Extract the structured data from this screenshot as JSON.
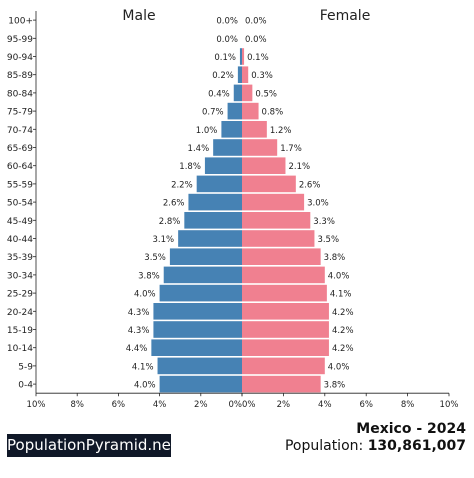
{
  "header": {
    "male_label": "Male",
    "female_label": "Female"
  },
  "footer": {
    "brand": "PopulationPyramid.net",
    "title": "Mexico - 2024",
    "population_label": "Population:",
    "population_value": "130,861,007"
  },
  "colors": {
    "male": "#4682b4",
    "female": "#f08090",
    "brand_bg": "#101828"
  },
  "chart_data": {
    "type": "bar",
    "orientation": "horizontal-pyramid",
    "categories": [
      "100+",
      "95-99",
      "90-94",
      "85-89",
      "80-84",
      "75-79",
      "70-74",
      "65-69",
      "60-64",
      "55-59",
      "50-54",
      "45-49",
      "40-44",
      "35-39",
      "30-34",
      "25-29",
      "20-24",
      "15-19",
      "10-14",
      "5-9",
      "0-4"
    ],
    "series": [
      {
        "name": "Male",
        "values": [
          0.0,
          0.0,
          0.1,
          0.2,
          0.4,
          0.7,
          1.0,
          1.4,
          1.8,
          2.2,
          2.6,
          2.8,
          3.1,
          3.5,
          3.8,
          4.0,
          4.3,
          4.3,
          4.4,
          4.1,
          4.0
        ],
        "labels": [
          "0.0%",
          "0.0%",
          "0.1%",
          "0.2%",
          "0.4%",
          "0.7%",
          "1.0%",
          "1.4%",
          "1.8%",
          "2.2%",
          "2.6%",
          "2.8%",
          "3.1%",
          "3.5%",
          "3.8%",
          "4.0%",
          "4.3%",
          "4.3%",
          "4.4%",
          "4.1%",
          "4.0%"
        ]
      },
      {
        "name": "Female",
        "values": [
          0.0,
          0.0,
          0.1,
          0.3,
          0.5,
          0.8,
          1.2,
          1.7,
          2.1,
          2.6,
          3.0,
          3.3,
          3.5,
          3.8,
          4.0,
          4.1,
          4.2,
          4.2,
          4.2,
          4.0,
          3.8
        ],
        "labels": [
          "0.0%",
          "0.0%",
          "0.1%",
          "0.3%",
          "0.5%",
          "0.8%",
          "1.2%",
          "1.7%",
          "2.1%",
          "2.6%",
          "3.0%",
          "3.3%",
          "3.5%",
          "3.8%",
          "4.0%",
          "4.1%",
          "4.2%",
          "4.2%",
          "4.2%",
          "4.0%",
          "3.8%"
        ]
      }
    ],
    "xlim": [
      -10,
      10
    ],
    "male_ticks": [
      "10%",
      "8%",
      "6%",
      "4%",
      "2%",
      "0%"
    ],
    "female_ticks": [
      "0%",
      "2%",
      "4%",
      "6%",
      "8%",
      "10%"
    ],
    "grid": false
  }
}
